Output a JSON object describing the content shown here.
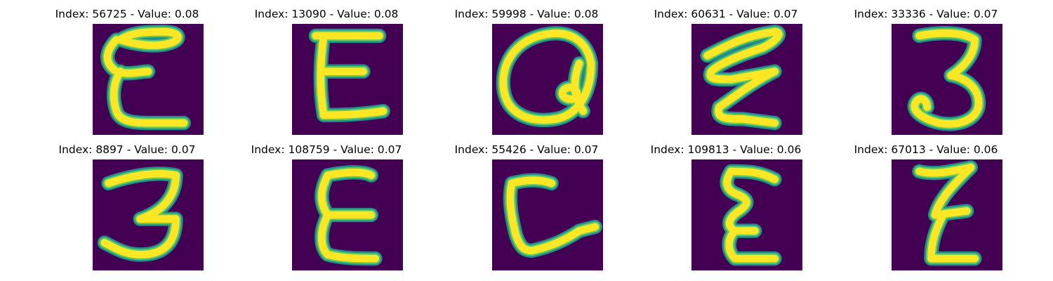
{
  "colors": {
    "background": "#440154",
    "stroke_outer": "#21908c",
    "stroke_mid": "#5ec962",
    "stroke_inner": "#fde725"
  },
  "panels": [
    {
      "title": "Index: 56725 - Value: 0.08",
      "glyph": "E"
    },
    {
      "title": "Index: 13090 - Value: 0.08",
      "glyph": "E"
    },
    {
      "title": "Index: 59998 - Value: 0.08",
      "glyph": "a"
    },
    {
      "title": "Index: 60631 - Value: 0.07",
      "glyph": "E"
    },
    {
      "title": "Index: 33336 - Value: 0.07",
      "glyph": "3"
    },
    {
      "title": "Index: 8897 - Value: 0.07",
      "glyph": "3"
    },
    {
      "title": "Index: 108759 - Value: 0.07",
      "glyph": "E"
    },
    {
      "title": "Index: 55426 - Value: 0.07",
      "glyph": "L"
    },
    {
      "title": "Index: 109813 - Value: 0.06",
      "glyph": "E"
    },
    {
      "title": "Index: 67013 - Value: 0.06",
      "glyph": "Z"
    }
  ]
}
